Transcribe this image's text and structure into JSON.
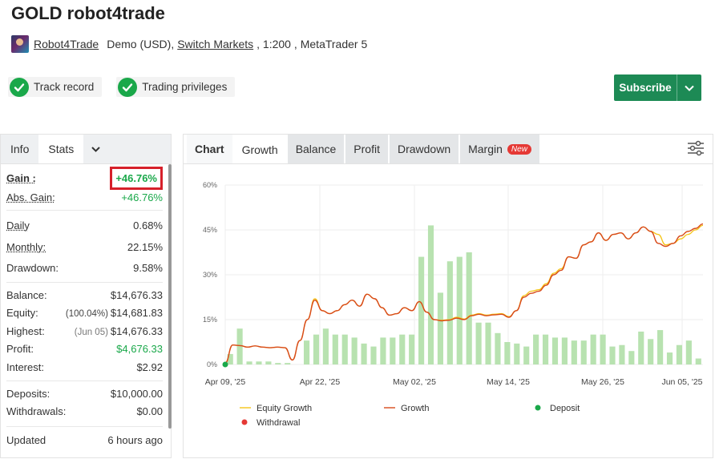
{
  "header": {
    "title": "GOLD robot4trade",
    "owner_link": "Robot4Trade",
    "account_type": "Demo (USD),",
    "broker_link": "Switch Markets",
    "leverage": ", 1:200 ,",
    "platform": "MetaTrader 5"
  },
  "badges": [
    "Track record",
    "Trading privileges"
  ],
  "subscribe": {
    "label": "Subscribe"
  },
  "left_tabs": {
    "info": "Info",
    "stats": "Stats"
  },
  "stats": {
    "gain_label": "Gain :",
    "gain_value": "+46.76%",
    "abs_gain_label": "Abs. Gain:",
    "abs_gain_value": "+46.76%",
    "daily_label": "Daily",
    "daily_value": "0.68%",
    "monthly_label": "Monthly:",
    "monthly_value": "22.15%",
    "drawdown_label": "Drawdown:",
    "drawdown_value": "9.58%",
    "balance_label": "Balance:",
    "balance_value": "$14,676.33",
    "equity_label": "Equity:",
    "equity_note": "(100.04%)",
    "equity_value": "$14,681.83",
    "highest_label": "Highest:",
    "highest_note": "(Jun 05)",
    "highest_value": "$14,676.33",
    "profit_label": "Profit:",
    "profit_value": "$4,676.33",
    "interest_label": "Interest:",
    "interest_value": "$2.92",
    "deposits_label": "Deposits:",
    "deposits_value": "$10,000.00",
    "withdrawals_label": "Withdrawals:",
    "withdrawals_value": "$0.00",
    "updated_label": "Updated",
    "updated_value": "6 hours ago"
  },
  "chart_tabs": {
    "chart": "Chart",
    "growth": "Growth",
    "balance": "Balance",
    "profit": "Profit",
    "drawdown": "Drawdown",
    "margin": "Margin",
    "new_badge": "New"
  },
  "chart_data": {
    "type": "line",
    "ylim": [
      0,
      60
    ],
    "yticks": [
      "0%",
      "15%",
      "30%",
      "45%",
      "60%"
    ],
    "xticks": [
      "Apr 09, '25",
      "Apr 22, '25",
      "May 02, '25",
      "May 14, '25",
      "May 26, '25",
      "Jun 05, '25"
    ],
    "series": [
      {
        "name": "Equity Growth",
        "color": "#f5c518",
        "values": [
          0.5,
          6.5,
          6.3,
          5.8,
          6.2,
          5.8,
          5.6,
          5.8,
          5.6,
          1.5,
          8,
          15,
          22,
          18,
          17,
          18,
          20,
          21.5,
          19.5,
          23.5,
          22,
          19,
          16.5,
          17,
          19,
          18,
          21,
          17.5,
          15,
          14.8,
          15,
          15.8,
          15.2,
          16.5,
          17,
          16.5,
          16.8,
          17,
          16,
          18,
          23,
          24.5,
          25,
          27,
          30.5,
          32,
          36,
          35.5,
          40,
          41,
          44,
          41.5,
          43.5,
          44,
          42,
          44,
          46,
          44.5,
          43.5,
          40,
          40.5,
          42,
          43.5,
          45,
          46.5
        ]
      },
      {
        "name": "Growth",
        "color": "#d84a1b",
        "values": [
          0.5,
          6.5,
          6.3,
          5.8,
          6.2,
          5.8,
          5.6,
          5.8,
          5.6,
          1.5,
          8,
          15,
          21.5,
          18,
          17,
          18,
          20,
          21.5,
          19.5,
          23.5,
          22,
          19,
          16.5,
          17,
          19,
          18,
          21,
          17.5,
          15,
          14.6,
          14.8,
          15.5,
          15,
          16.3,
          16.8,
          16.3,
          16.6,
          16.8,
          15.8,
          18,
          22.5,
          23.8,
          24.5,
          26.5,
          30,
          31.5,
          36,
          35.5,
          40,
          41,
          44,
          41.5,
          43.5,
          44,
          42,
          44,
          46,
          44.5,
          40.5,
          39.5,
          40.5,
          43,
          44.5,
          45.5,
          47
        ]
      }
    ],
    "bars": {
      "name": "Profit",
      "color": "#b8e2b0",
      "values": [
        3.5,
        12,
        1,
        1,
        1,
        0.5,
        0.5,
        0,
        8,
        10,
        12,
        10,
        10,
        9,
        7,
        6,
        9,
        9,
        10,
        10,
        36,
        46.5,
        24,
        34.5,
        36,
        37.5,
        14,
        14,
        10.5,
        7.5,
        7,
        6,
        10,
        10,
        9,
        9,
        8,
        8,
        10,
        10,
        6,
        6.5,
        4.5,
        11,
        8.5,
        11.5,
        4,
        6.5,
        8,
        2
      ]
    },
    "legend": [
      "Equity Growth",
      "Growth",
      "Deposit",
      "Withdrawal"
    ],
    "legend_colors": {
      "equity": "#f5c518",
      "growth": "#d84a1b",
      "deposit": "#1aa84a",
      "withdrawal": "#e53935"
    },
    "deposit_markers": [
      {
        "x_index": 0,
        "value": 0
      }
    ],
    "grid": true
  }
}
